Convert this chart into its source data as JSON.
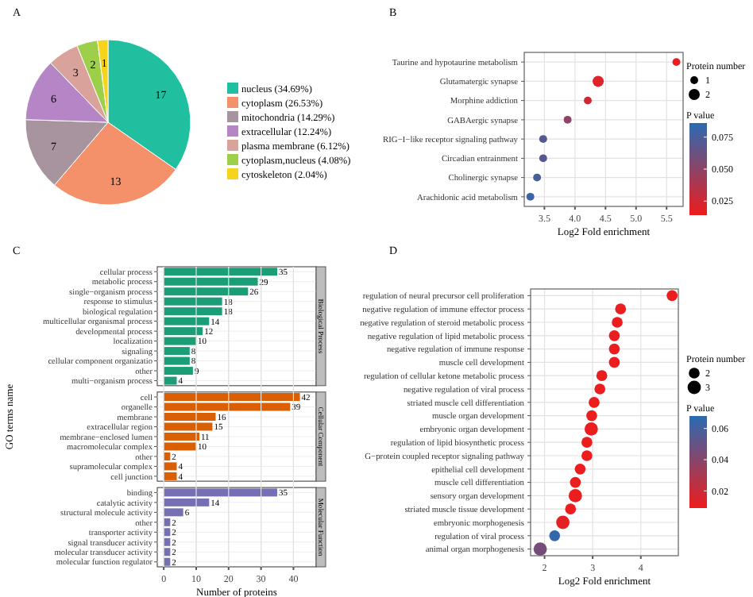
{
  "chart_data": [
    {
      "type": "pie",
      "title": "A",
      "categories": [
        "nucleus (34.69%)",
        "cytoplasm (26.53%)",
        "mitochondria (14.29%)",
        "extracellular (12.24%)",
        "plasma membrane (6.12%)",
        "cytoplasm,nucleus (4.08%)",
        "cytoskeleton (2.04%)"
      ],
      "values": [
        17,
        13,
        7,
        6,
        3,
        2,
        1
      ],
      "colors": [
        "#1fbf9f",
        "#f4916a",
        "#a8949e",
        "#b685c6",
        "#d9a39b",
        "#9dcf4b",
        "#f6d31c"
      ],
      "data_labels": true,
      "legend": "right"
    },
    {
      "type": "scatter",
      "title": "B",
      "orientation": "horizontal",
      "xlabel": "Log2 Fold enrichment",
      "categories": [
        "Taurine and hypotaurine metabolism",
        "Glutamatergic synapse",
        "Morphine addiction",
        "GABAergic synapse",
        "RIG−I−like receptor signaling pathway",
        "Circadian entrainment",
        "Cholinergic synapse",
        "Arachidonic acid metabolism"
      ],
      "values": [
        5.66,
        4.38,
        4.21,
        3.88,
        3.48,
        3.48,
        3.38,
        3.27
      ],
      "sizes": [
        1,
        2,
        1,
        1,
        1,
        1,
        1,
        1
      ],
      "size_legend": [
        1,
        2
      ],
      "cvalues": [
        0.015,
        0.02,
        0.025,
        0.05,
        0.07,
        0.07,
        0.075,
        0.08
      ],
      "clim": [
        0.014,
        0.086
      ],
      "cticks": [
        0.025,
        {
          "value": 0.05,
          "label": "0.050"
        },
        0.075
      ],
      "clabel": "P value",
      "legend_title": "Protein number",
      "xlim": [
        3.17,
        5.77
      ],
      "xticks": [
        3.5,
        {
          "value": 4,
          "label": "4.0"
        },
        4.5,
        {
          "value": 5,
          "label": "5.0"
        },
        5.5
      ],
      "grid": true
    },
    {
      "type": "bar",
      "title": "C",
      "orientation": "horizontal",
      "xlabel": "Number of proteins",
      "ylabel": "GO terms name",
      "categories": [
        "cellular process",
        "metabolic process",
        "single−organism process",
        "response to stimulus",
        "biological regulation",
        "multicellular organismal process",
        "developmental process",
        "localization",
        "signaling",
        "cellular component organizatio",
        "other",
        "multi−organism process",
        "cell",
        "organelle",
        "membrane",
        "extracellular region",
        "membrane−enclosed lumen",
        "macromolecular complex",
        "other",
        "supramolecular complex",
        "cell junction",
        "binding",
        "catalytic activity",
        "structural molecule activity",
        "other",
        "transporter activity",
        "signal transducer activity",
        "molecular transducer activity",
        "molecular function regulator"
      ],
      "series": [
        {
          "name": "Biological Process",
          "color": "#1b9e77",
          "values": [
            35,
            29,
            26,
            18,
            18,
            14,
            12,
            10,
            8,
            8,
            9,
            4,
            null,
            null,
            null,
            null,
            null,
            null,
            null,
            null,
            null,
            null,
            null,
            null,
            null,
            null,
            null,
            null,
            null
          ]
        },
        {
          "name": "Cellular Component",
          "color": "#d95f02",
          "values": [
            null,
            null,
            null,
            null,
            null,
            null,
            null,
            null,
            null,
            null,
            null,
            null,
            42,
            39,
            16,
            15,
            11,
            10,
            2,
            4,
            4,
            null,
            null,
            null,
            null,
            null,
            null,
            null,
            null
          ]
        },
        {
          "name": "Molecular Function",
          "color": "#7570b3",
          "values": [
            null,
            null,
            null,
            null,
            null,
            null,
            null,
            null,
            null,
            null,
            null,
            null,
            null,
            null,
            null,
            null,
            null,
            null,
            null,
            null,
            null,
            35,
            14,
            6,
            2,
            2,
            2,
            2,
            2
          ]
        }
      ],
      "xlim": [
        -2,
        47
      ],
      "xticks": [
        0,
        10,
        20,
        30,
        40
      ],
      "grid": true,
      "data_labels": true
    },
    {
      "type": "scatter",
      "title": "D",
      "orientation": "horizontal",
      "xlabel": "Log2 Fold enrichment",
      "categories": [
        "regulation of neural precursor cell proliferation",
        "negative regulation of immune effector process",
        "negative regulation of steroid metabolic process",
        "negative regulation of lipid metabolic process",
        "negative regulation of immune response",
        "muscle cell development",
        "regulation of cellular ketone metabolic process",
        "negative regulation of viral process",
        "striated muscle cell differentiation",
        "muscle organ development",
        "embryonic organ development",
        "regulation of lipid biosynthetic process",
        "G−protein coupled receptor signaling pathway",
        "epithelial cell development",
        "muscle cell differentiation",
        "sensory organ development",
        "striated muscle tissue development",
        "embryonic morphogenesis",
        "regulation of viral process",
        "animal organ morphogenesis"
      ],
      "values": [
        4.65,
        3.58,
        3.51,
        3.45,
        3.45,
        3.45,
        3.19,
        3.15,
        3.03,
        2.98,
        2.97,
        2.88,
        2.88,
        2.74,
        2.64,
        2.64,
        2.54,
        2.38,
        2.21,
        1.91
      ],
      "sizes": [
        2,
        2,
        2,
        2,
        2,
        2,
        2,
        2,
        2,
        2,
        3,
        2,
        2,
        2,
        2,
        3,
        2,
        3,
        2,
        3
      ],
      "size_legend": [
        2,
        3
      ],
      "cvalues": [
        0.01,
        0.01,
        0.01,
        0.01,
        0.01,
        0.01,
        0.01,
        0.01,
        0.01,
        0.01,
        0.01,
        0.01,
        0.01,
        0.01,
        0.01,
        0.01,
        0.01,
        0.012,
        0.065,
        0.045
      ],
      "clim": [
        0.009,
        0.068
      ],
      "cticks": [
        0.02,
        0.04,
        0.06
      ],
      "clabel": "P value",
      "legend_title": "Protein number",
      "xlim": [
        1.71,
        4.78
      ],
      "xticks": [
        2,
        3,
        4
      ],
      "grid": true
    }
  ]
}
